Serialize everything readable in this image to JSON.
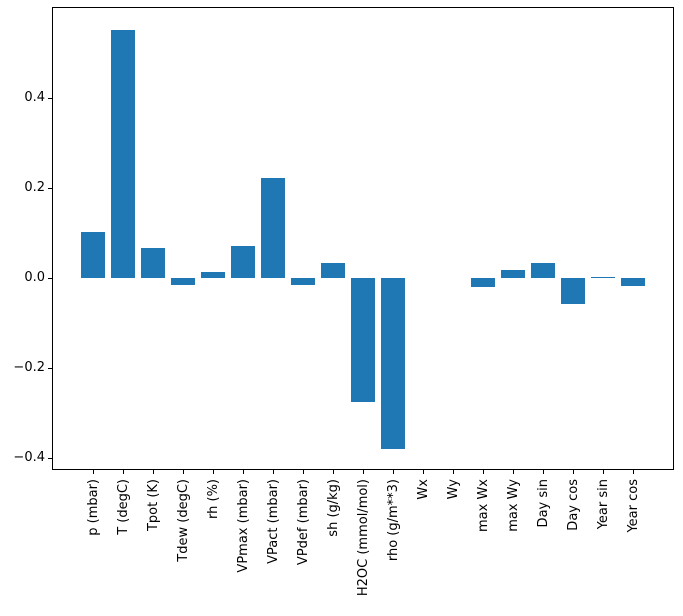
{
  "chart_data": {
    "type": "bar",
    "title": "",
    "xlabel": "",
    "ylabel": "",
    "categories": [
      "p (mbar)",
      "T (degC)",
      "Tpot (K)",
      "Tdew (degC)",
      "rh (%)",
      "VPmax (mbar)",
      "VPact (mbar)",
      "VPdef (mbar)",
      "sh (g/kg)",
      "H2OC (mmol/mol)",
      "rho (g/m**3)",
      "Wx",
      "Wy",
      "max Wx",
      "max Wy",
      "Day sin",
      "Day cos",
      "Year sin",
      "Year cos"
    ],
    "values": [
      0.102,
      0.552,
      0.067,
      -0.016,
      0.013,
      0.071,
      0.222,
      -0.016,
      0.035,
      -0.274,
      -0.379,
      0.0,
      0.0,
      -0.02,
      0.018,
      0.035,
      -0.057,
      0.003,
      -0.018
    ],
    "ylim": [
      -0.424,
      0.601
    ],
    "yticks": [
      {
        "value": 0.4,
        "label": "0.4"
      },
      {
        "value": 0.2,
        "label": "0.2"
      },
      {
        "value": 0.0,
        "label": "0.0"
      },
      {
        "value": -0.2,
        "label": "−0.2"
      },
      {
        "value": -0.4,
        "label": "−0.4"
      }
    ],
    "bar_color": "#1f77b4",
    "background_color": "#ffffff",
    "spine_color": "#000000",
    "grid": false,
    "legend": null
  }
}
